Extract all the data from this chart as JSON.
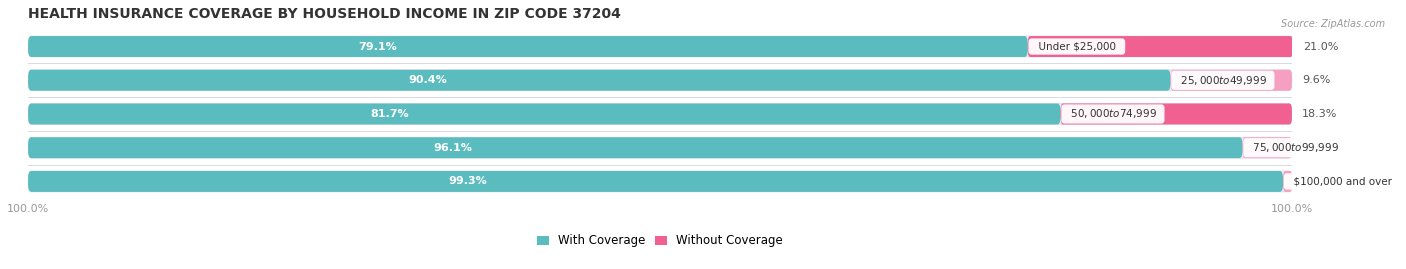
{
  "title": "HEALTH INSURANCE COVERAGE BY HOUSEHOLD INCOME IN ZIP CODE 37204",
  "source": "Source: ZipAtlas.com",
  "categories": [
    "Under $25,000",
    "$25,000 to $49,999",
    "$50,000 to $74,999",
    "$75,000 to $99,999",
    "$100,000 and over"
  ],
  "with_coverage": [
    79.1,
    90.4,
    81.7,
    96.1,
    99.3
  ],
  "without_coverage": [
    21.0,
    9.6,
    18.3,
    3.9,
    0.73
  ],
  "color_with": "#5bbcbf",
  "color_without_large": "#f06090",
  "color_without_small": "#f5a0c0",
  "color_bg_bar": "#ebebf2",
  "background_color": "#ffffff",
  "title_fontsize": 10,
  "label_fontsize": 8,
  "tick_fontsize": 8,
  "legend_fontsize": 8.5,
  "without_coverage_threshold": 10.0
}
